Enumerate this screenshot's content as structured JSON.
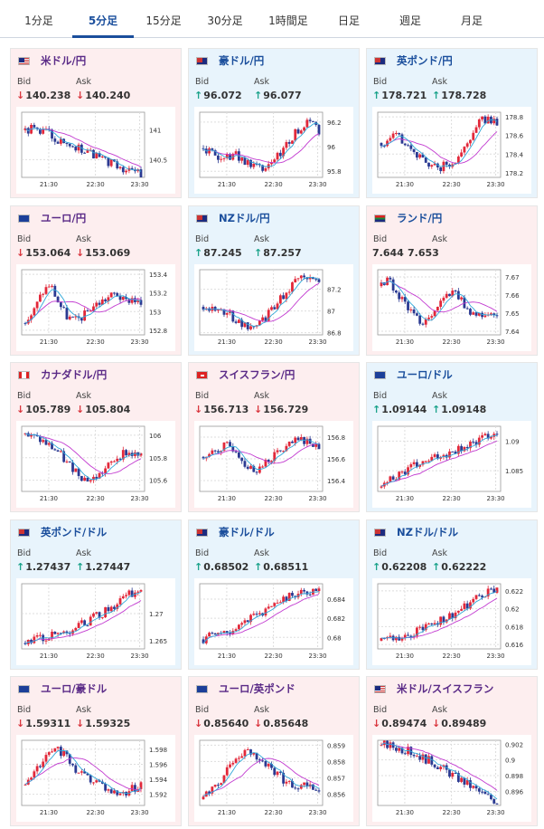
{
  "tabs": [
    {
      "label": "1分足",
      "active": false
    },
    {
      "label": "5分足",
      "active": true
    },
    {
      "label": "15分足",
      "active": false
    },
    {
      "label": "30分足",
      "active": false
    },
    {
      "label": "1時間足",
      "active": false
    },
    {
      "label": "日足",
      "active": false
    },
    {
      "label": "週足",
      "active": false
    },
    {
      "label": "月足",
      "active": false
    }
  ],
  "colors": {
    "up_candle": "#e2283a",
    "down_candle": "#2b3a92",
    "ma_short": "#30a8d8",
    "ma_long": "#c23ad0",
    "tab_active": "#1a4e9c",
    "down_card": "#fdeeef",
    "up_card": "#e8f4fc"
  },
  "bid_label": "Bid",
  "ask_label": "Ask",
  "cards": [
    {
      "pair": "米ドル/円",
      "flag": "us-flag",
      "direction": "down",
      "bid": "140.238",
      "ask": "140.240",
      "ticks": [
        "141",
        "140.5"
      ],
      "times": [
        "21:30",
        "22:30",
        "23:30"
      ],
      "ymin": 140.2,
      "ymax": 141.3,
      "trend": [
        141.0,
        141.02,
        140.98,
        140.95,
        140.8,
        140.75,
        140.7,
        140.65,
        140.6,
        140.5,
        140.45,
        140.4,
        140.35,
        140.3,
        140.25
      ]
    },
    {
      "pair": "豪ドル/円",
      "flag": "au-flag",
      "direction": "up",
      "bid": "96.072",
      "ask": "96.077",
      "ticks": [
        "96.2",
        "96",
        "95.8"
      ],
      "times": [
        "21:30",
        "22:30",
        "23:30"
      ],
      "ymin": 95.75,
      "ymax": 96.28,
      "trend": [
        95.98,
        95.96,
        95.92,
        95.9,
        95.93,
        95.88,
        95.84,
        95.82,
        95.85,
        95.92,
        96.0,
        96.1,
        96.18,
        96.2,
        96.12
      ]
    },
    {
      "pair": "英ポンド/円",
      "flag": "gb-flag",
      "direction": "up",
      "bid": "178.721",
      "ask": "178.728",
      "ticks": [
        "178.8",
        "178.6",
        "178.4",
        "178.2"
      ],
      "times": [
        "21:30",
        "22:30",
        "23:30"
      ],
      "ymin": 178.15,
      "ymax": 178.85,
      "trend": [
        178.5,
        178.55,
        178.6,
        178.52,
        178.4,
        178.35,
        178.3,
        178.25,
        178.3,
        178.35,
        178.45,
        178.6,
        178.75,
        178.8,
        178.72
      ]
    },
    {
      "pair": "ユーロ/円",
      "flag": "eu-flag",
      "direction": "down",
      "bid": "153.064",
      "ask": "153.069",
      "ticks": [
        "153.4",
        "153.2",
        "153",
        "152.8"
      ],
      "times": [
        "21:30",
        "22:30",
        "23:30"
      ],
      "ymin": 152.75,
      "ymax": 153.45,
      "trend": [
        152.9,
        153.0,
        153.2,
        153.3,
        153.1,
        152.95,
        152.9,
        152.95,
        153.05,
        153.1,
        153.15,
        153.2,
        153.1,
        153.15,
        153.07
      ]
    },
    {
      "pair": "NZドル/円",
      "flag": "nz-flag",
      "direction": "up",
      "bid": "87.245",
      "ask": "87.257",
      "ticks": [
        "87.2",
        "87",
        "86.8"
      ],
      "times": [
        "21:30",
        "22:30",
        "23:30"
      ],
      "ymin": 86.78,
      "ymax": 87.38,
      "trend": [
        87.05,
        87.02,
        87.0,
        86.98,
        86.92,
        86.88,
        86.85,
        86.9,
        86.98,
        87.08,
        87.18,
        87.25,
        87.3,
        87.32,
        87.25
      ]
    },
    {
      "pair": "ランド/円",
      "flag": "za-flag",
      "direction": "neutral",
      "bid": "7.644",
      "ask": "7.653",
      "ticks": [
        "7.67",
        "7.66",
        "7.65",
        "7.64"
      ],
      "times": [
        "21:30",
        "22:30",
        "23:30"
      ],
      "ymin": 7.638,
      "ymax": 7.674,
      "trend": [
        7.665,
        7.668,
        7.66,
        7.655,
        7.648,
        7.645,
        7.65,
        7.655,
        7.66,
        7.662,
        7.655,
        7.65,
        7.648,
        7.65,
        7.647
      ]
    },
    {
      "pair": "カナダドル/円",
      "flag": "ca-flag",
      "direction": "down",
      "bid": "105.789",
      "ask": "105.804",
      "ticks": [
        "106",
        "105.8",
        "105.6"
      ],
      "times": [
        "21:30",
        "22:30",
        "23:30"
      ],
      "ymin": 105.5,
      "ymax": 106.08,
      "trend": [
        106.0,
        105.98,
        105.95,
        105.9,
        105.85,
        105.75,
        105.7,
        105.62,
        105.6,
        105.65,
        105.72,
        105.8,
        105.85,
        105.83,
        105.8
      ]
    },
    {
      "pair": "スイスフラン/円",
      "flag": "ch-flag",
      "direction": "down",
      "bid": "156.713",
      "ask": "156.729",
      "ticks": [
        "156.8",
        "156.6",
        "156.4"
      ],
      "times": [
        "21:30",
        "22:30",
        "23:30"
      ],
      "ymin": 156.3,
      "ymax": 156.9,
      "trend": [
        156.6,
        156.65,
        156.7,
        156.72,
        156.68,
        156.55,
        156.5,
        156.52,
        156.6,
        156.65,
        156.7,
        156.75,
        156.78,
        156.76,
        156.72
      ]
    },
    {
      "pair": "ユーロ/ドル",
      "flag": "eu-flag",
      "direction": "up",
      "bid": "1.09144",
      "ask": "1.09148",
      "ticks": [
        "1.09",
        "1.085"
      ],
      "times": [
        "21:30",
        "22:30",
        "23:30"
      ],
      "ymin": 1.0815,
      "ymax": 1.0925,
      "trend": [
        1.0825,
        1.0835,
        1.0845,
        1.085,
        1.0858,
        1.0862,
        1.0868,
        1.0875,
        1.088,
        1.0886,
        1.089,
        1.0895,
        1.0903,
        1.091,
        1.0914
      ]
    },
    {
      "pair": "英ポンド/ドル",
      "flag": "gb-flag",
      "direction": "up",
      "bid": "1.27437",
      "ask": "1.27447",
      "ticks": [
        "1.27",
        "1.265"
      ],
      "times": [
        "21:30",
        "22:30",
        "23:30"
      ],
      "ymin": 1.2635,
      "ymax": 1.2755,
      "trend": [
        1.2648,
        1.2652,
        1.2655,
        1.2658,
        1.2662,
        1.2668,
        1.2675,
        1.2682,
        1.269,
        1.2698,
        1.2708,
        1.2718,
        1.273,
        1.2738,
        1.2744
      ]
    },
    {
      "pair": "豪ドル/ドル",
      "flag": "au-flag",
      "direction": "up",
      "bid": "0.68502",
      "ask": "0.68511",
      "ticks": [
        "0.684",
        "0.682",
        "0.68"
      ],
      "times": [
        "21:30",
        "22:30",
        "23:30"
      ],
      "ymin": 0.6788,
      "ymax": 0.6856,
      "trend": [
        0.6798,
        0.6801,
        0.6803,
        0.6806,
        0.681,
        0.6815,
        0.682,
        0.6826,
        0.6832,
        0.6838,
        0.6842,
        0.6846,
        0.6848,
        0.6849,
        0.685
      ]
    },
    {
      "pair": "NZドル/ドル",
      "flag": "nz-flag",
      "direction": "up",
      "bid": "0.62208",
      "ask": "0.62222",
      "ticks": [
        "0.622",
        "0.62",
        "0.618",
        "0.616"
      ],
      "times": [
        "21:30",
        "22:30",
        "23:30"
      ],
      "ymin": 0.6155,
      "ymax": 0.6228,
      "trend": [
        0.6163,
        0.6166,
        0.6168,
        0.617,
        0.6174,
        0.6178,
        0.6182,
        0.6186,
        0.619,
        0.6196,
        0.6202,
        0.6208,
        0.6214,
        0.6218,
        0.6221
      ]
    },
    {
      "pair": "ユーロ/豪ドル",
      "flag": "eu-flag",
      "direction": "down",
      "bid": "1.59311",
      "ask": "1.59325",
      "ticks": [
        "1.598",
        "1.596",
        "1.594",
        "1.592"
      ],
      "times": [
        "21:30",
        "22:30",
        "23:30"
      ],
      "ymin": 1.5905,
      "ymax": 1.5992,
      "trend": [
        1.593,
        1.5945,
        1.596,
        1.5975,
        1.598,
        1.597,
        1.5955,
        1.5945,
        1.594,
        1.5935,
        1.5925,
        1.592,
        1.5922,
        1.5928,
        1.5931
      ]
    },
    {
      "pair": "ユーロ/英ポンド",
      "flag": "eu-flag",
      "direction": "down",
      "bid": "0.85640",
      "ask": "0.85648",
      "ticks": [
        "0.859",
        "0.858",
        "0.857",
        "0.856"
      ],
      "times": [
        "21:30",
        "22:30",
        "23:30"
      ],
      "ymin": 0.8553,
      "ymax": 0.8593,
      "trend": [
        0.8558,
        0.8562,
        0.8568,
        0.8575,
        0.8582,
        0.8588,
        0.8585,
        0.858,
        0.8576,
        0.8572,
        0.8568,
        0.8566,
        0.8565,
        0.8564,
        0.8564
      ]
    },
    {
      "pair": "米ドル/スイスフラン",
      "flag": "us-flag",
      "direction": "down",
      "bid": "0.89474",
      "ask": "0.89489",
      "ticks": [
        "0.902",
        "0.9",
        "0.898",
        "0.896"
      ],
      "times": [
        "21:30",
        "22:30",
        "23:30"
      ],
      "ymin": 0.8942,
      "ymax": 0.9025,
      "trend": [
        0.902,
        0.9018,
        0.9015,
        0.9012,
        0.9008,
        0.9003,
        0.8998,
        0.8992,
        0.8985,
        0.8978,
        0.8972,
        0.8965,
        0.8958,
        0.8952,
        0.8947
      ]
    }
  ]
}
